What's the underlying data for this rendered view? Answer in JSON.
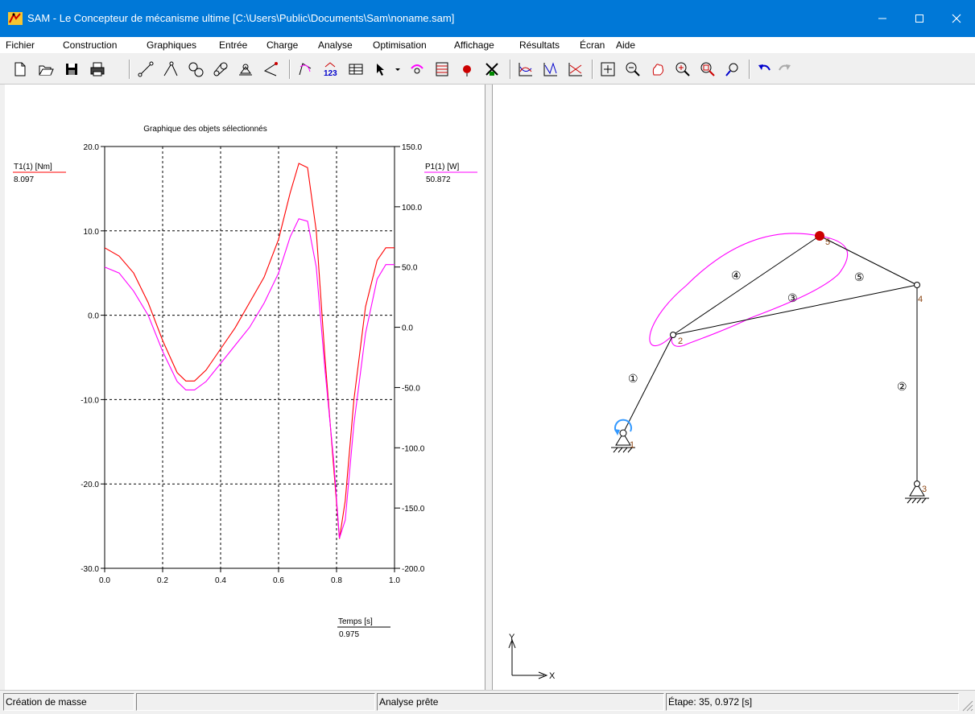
{
  "window": {
    "title": "SAM - Le Concepteur de mécanisme ultime [C:\\Users\\Public\\Documents\\Sam\\noname.sam]",
    "accent": "#0078d7"
  },
  "menu": [
    "Fichier",
    "Construction",
    "Graphiques",
    "Entrée",
    "Charge",
    "Analyse",
    "Optimisation",
    "Affichage",
    "Résultats",
    "Écran",
    "Aide"
  ],
  "toolbar": {
    "icons": [
      "new-icon",
      "open-icon",
      "save-icon",
      "print-icon",
      "link-icon",
      "link2-icon",
      "gear-icon",
      "belt-icon",
      "support-icon",
      "angle-icon",
      "trace-icon",
      "number-icon",
      "table-icon",
      "pointer-icon",
      "dropdown-icon",
      "motor-icon",
      "spring-icon",
      "mass-icon",
      "load-icon",
      "graph1-icon",
      "graph2-icon",
      "graph3-icon",
      "fit-icon",
      "zoom-out-icon",
      "pan-icon",
      "zoom-in-icon",
      "zoom-window-icon",
      "zoom-object-icon",
      "undo-icon",
      "redo-icon"
    ]
  },
  "graph": {
    "title": "Graphique des objets sélectionnés",
    "left_axis": {
      "label": "T1(1) [Nm]",
      "value": "8.097",
      "color": "#ff0000"
    },
    "right_axis": {
      "label": "P1(1) [W]",
      "value": "50.872",
      "color": "#ff00ff"
    },
    "x_axis": {
      "label": "Temps [s]",
      "value": "0.975"
    }
  },
  "chart_data": {
    "type": "line",
    "title": "Graphique des objets sélectionnés",
    "xlabel": "Temps [s]",
    "ylabel": "T1(1) [Nm]",
    "y2label": "P1(1) [W]",
    "xlim": [
      0.0,
      1.0
    ],
    "ylim": [
      -30.0,
      20.0
    ],
    "y2lim": [
      -200.0,
      150.0
    ],
    "x_ticks": [
      "0.0",
      "0.2",
      "0.4",
      "0.6",
      "0.8",
      "1.0"
    ],
    "y_ticks": [
      "20.0",
      "10.0",
      "0.0",
      "-10.0",
      "-20.0",
      "-30.0"
    ],
    "y2_ticks": [
      "150.0",
      "100.0",
      "50.0",
      "0.0",
      "-50.0",
      "-100.0",
      "-150.0",
      "-200.0"
    ],
    "grid": true,
    "x": [
      0.0,
      0.05,
      0.1,
      0.15,
      0.2,
      0.25,
      0.28,
      0.31,
      0.35,
      0.4,
      0.45,
      0.5,
      0.55,
      0.6,
      0.64,
      0.67,
      0.7,
      0.73,
      0.76,
      0.79,
      0.81,
      0.83,
      0.86,
      0.9,
      0.94,
      0.97,
      1.0
    ],
    "series": [
      {
        "name": "T1(1) [Nm]",
        "axis": "left",
        "color": "#ff0000",
        "values": [
          8.0,
          7.0,
          5.0,
          1.5,
          -3.0,
          -6.8,
          -7.8,
          -7.8,
          -6.5,
          -4.0,
          -1.5,
          1.5,
          4.5,
          9.0,
          14.5,
          18.0,
          17.5,
          10.0,
          -5.0,
          -18.0,
          -26.5,
          -22.0,
          -10.0,
          1.0,
          6.5,
          8.0,
          8.0
        ]
      },
      {
        "name": "P1(1) [W]",
        "axis": "right",
        "color": "#ff00ff",
        "values": [
          50.0,
          45.0,
          30.0,
          10.0,
          -20.0,
          -45.0,
          -52.0,
          -52.0,
          -45.0,
          -30.0,
          -15.0,
          0.0,
          20.0,
          45.0,
          75.0,
          90.0,
          88.0,
          50.0,
          -35.0,
          -110.0,
          -175.0,
          -160.0,
          -80.0,
          -5.0,
          40.0,
          52.0,
          52.0
        ]
      }
    ]
  },
  "mechanism": {
    "node_labels": [
      "1",
      "2",
      "3",
      "4",
      "5"
    ],
    "link_labels": [
      "①",
      "②",
      "③",
      "④",
      "⑤"
    ],
    "axis_x": "X",
    "axis_y": "Y"
  },
  "status": {
    "left": "Création de masse",
    "middle": "",
    "analysis": "Analyse prête",
    "step": "Étape: 35,    0.972 [s]"
  }
}
